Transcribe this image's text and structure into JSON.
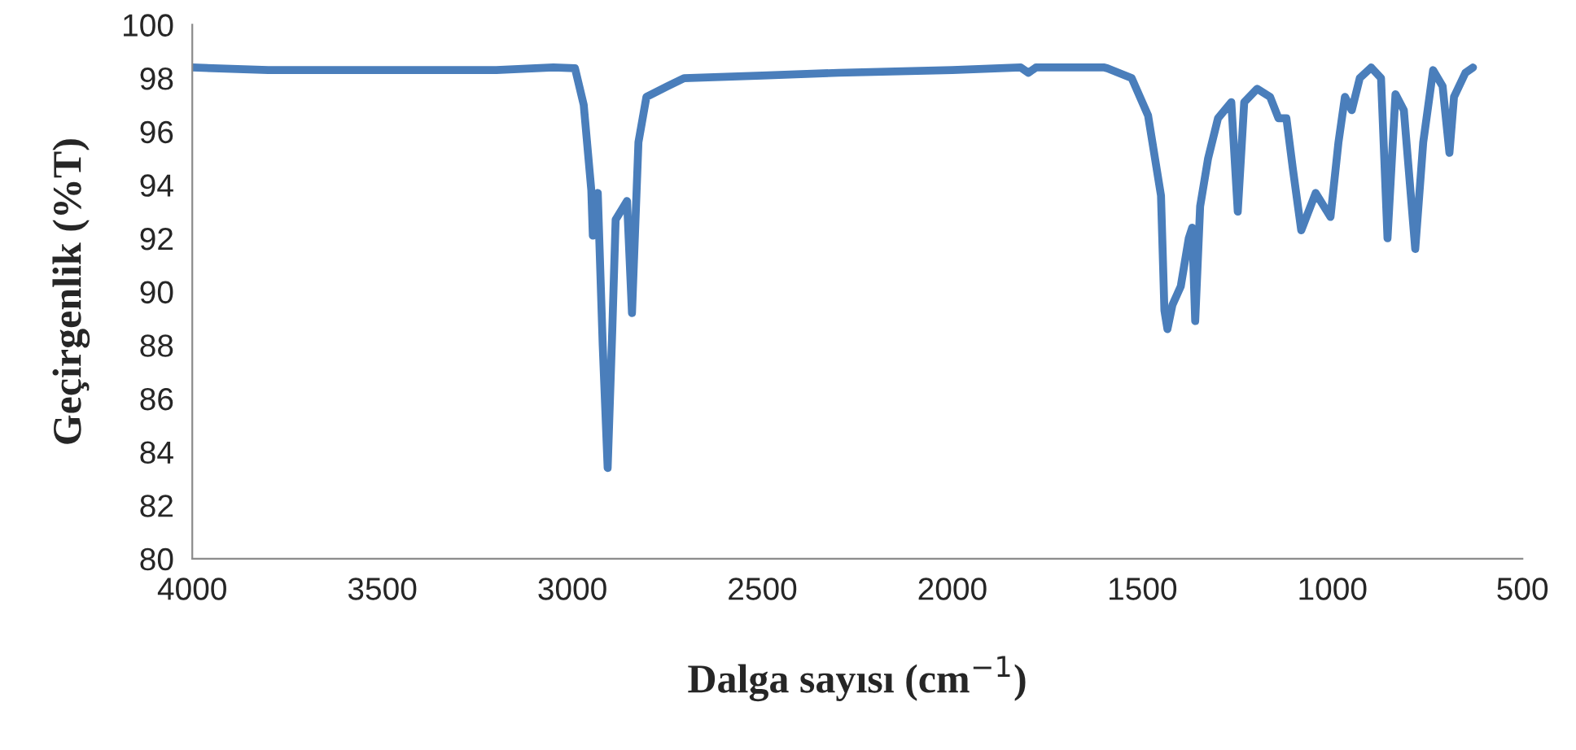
{
  "chart_data": {
    "type": "line",
    "xlabel": "Dalga sayısı (cm$^{−1}$)",
    "ylabel": "Geçirgenlik (%T)",
    "xlim": [
      4000,
      500
    ],
    "xticks": [
      4000,
      3500,
      3000,
      2500,
      2000,
      1500,
      1000,
      500
    ],
    "ylim": [
      80,
      100
    ],
    "yticks": [
      80,
      82,
      84,
      86,
      88,
      90,
      92,
      94,
      96,
      98,
      100
    ],
    "grid": false,
    "legend": false,
    "series": [
      {
        "color": "#4a7ebb",
        "x": [
          4000,
          3800,
          3600,
          3400,
          3200,
          3050,
          2993,
          2970,
          2950,
          2946,
          2933,
          2920,
          2907,
          2895,
          2886,
          2856,
          2843,
          2826,
          2805,
          2749,
          2706,
          2500,
          2300,
          2000,
          1820,
          1800,
          1780,
          1600,
          1592,
          1528,
          1485,
          1451,
          1442,
          1434,
          1421,
          1399,
          1378,
          1369,
          1361,
          1348,
          1327,
          1301,
          1266,
          1249,
          1232,
          1198,
          1164,
          1142,
          1121,
          1104,
          1082,
          1044,
          1005,
          984,
          967,
          949,
          928,
          898,
          872,
          855,
          834,
          812,
          782,
          761,
          735,
          710,
          692,
          680,
          650,
          630
        ],
        "values": [
          98.4,
          98.3,
          98.3,
          98.3,
          98.3,
          98.4,
          98.37,
          97.0,
          93.8,
          92.1,
          93.7,
          88.0,
          83.4,
          88.5,
          92.7,
          93.4,
          89.2,
          95.6,
          97.3,
          97.7,
          98.0,
          98.1,
          98.2,
          98.3,
          98.4,
          98.2,
          98.4,
          98.4,
          98.37,
          98.0,
          96.6,
          93.6,
          89.3,
          88.6,
          89.5,
          90.2,
          92.0,
          92.4,
          88.9,
          93.2,
          95.0,
          96.5,
          97.1,
          93.0,
          97.1,
          97.6,
          97.3,
          96.5,
          96.5,
          94.6,
          92.3,
          93.7,
          92.8,
          95.6,
          97.3,
          96.8,
          98.0,
          98.4,
          98.0,
          92.0,
          97.4,
          96.8,
          91.6,
          95.6,
          98.3,
          97.7,
          95.2,
          97.3,
          98.2,
          98.4
        ]
      }
    ]
  }
}
